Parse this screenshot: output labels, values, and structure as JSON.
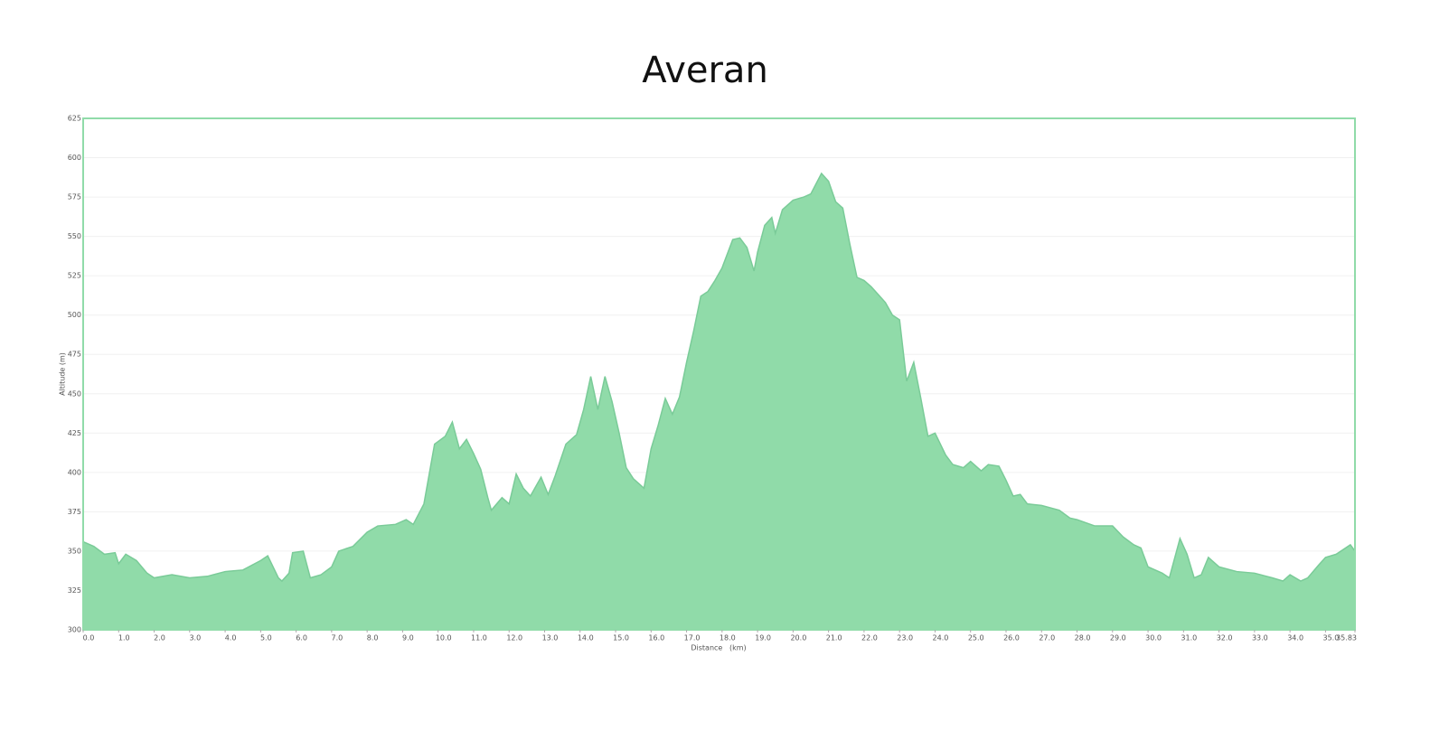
{
  "chart_data": {
    "type": "area",
    "title": "Averan",
    "x_label": "Distance   (km)",
    "y_label": "Altitude (m)",
    "color": "#90dba9",
    "line_color": "#7acb98",
    "grid": true,
    "xlim": [
      0,
      35.83
    ],
    "ylim": [
      300,
      625
    ],
    "yticks": [
      300,
      325,
      350,
      375,
      400,
      425,
      450,
      475,
      500,
      525,
      550,
      575,
      600,
      625
    ],
    "xticks": [
      {
        "value": 0,
        "label": "0.0"
      },
      {
        "value": 1,
        "label": "1.0"
      },
      {
        "value": 2,
        "label": "2.0"
      },
      {
        "value": 3,
        "label": "3.0"
      },
      {
        "value": 4,
        "label": "4.0"
      },
      {
        "value": 5,
        "label": "5.0"
      },
      {
        "value": 6,
        "label": "6.0"
      },
      {
        "value": 7,
        "label": "7.0"
      },
      {
        "value": 8,
        "label": "8.0"
      },
      {
        "value": 9,
        "label": "9.0"
      },
      {
        "value": 10,
        "label": "10.0"
      },
      {
        "value": 11,
        "label": "11.0"
      },
      {
        "value": 12,
        "label": "12.0"
      },
      {
        "value": 13,
        "label": "13.0"
      },
      {
        "value": 14,
        "label": "14.0"
      },
      {
        "value": 15,
        "label": "15.0"
      },
      {
        "value": 16,
        "label": "16.0"
      },
      {
        "value": 17,
        "label": "17.0"
      },
      {
        "value": 18,
        "label": "18.0"
      },
      {
        "value": 19,
        "label": "19.0"
      },
      {
        "value": 20,
        "label": "20.0"
      },
      {
        "value": 21,
        "label": "21.0"
      },
      {
        "value": 22,
        "label": "22.0"
      },
      {
        "value": 23,
        "label": "23.0"
      },
      {
        "value": 24,
        "label": "24.0"
      },
      {
        "value": 25,
        "label": "25.0"
      },
      {
        "value": 26,
        "label": "26.0"
      },
      {
        "value": 27,
        "label": "27.0"
      },
      {
        "value": 28,
        "label": "28.0"
      },
      {
        "value": 29,
        "label": "29.0"
      },
      {
        "value": 30,
        "label": "30.0"
      },
      {
        "value": 31,
        "label": "31.0"
      },
      {
        "value": 32,
        "label": "32.0"
      },
      {
        "value": 33,
        "label": "33.0"
      },
      {
        "value": 34,
        "label": "34.0"
      },
      {
        "value": 35,
        "label": "35.0"
      },
      35.83
    ],
    "x": [
      0,
      0.3,
      0.6,
      0.9,
      1.0,
      1.2,
      1.5,
      1.8,
      2.0,
      2.5,
      3.0,
      3.5,
      4.0,
      4.5,
      5.0,
      5.2,
      5.5,
      5.6,
      5.8,
      5.9,
      6.2,
      6.4,
      6.7,
      7.0,
      7.2,
      7.6,
      8.0,
      8.3,
      8.8,
      9.1,
      9.3,
      9.6,
      9.9,
      10.2,
      10.4,
      10.6,
      10.8,
      11.0,
      11.2,
      11.4,
      11.5,
      11.8,
      12.0,
      12.2,
      12.4,
      12.6,
      12.9,
      13.1,
      13.3,
      13.6,
      13.9,
      14.1,
      14.3,
      14.5,
      14.7,
      14.9,
      15.1,
      15.3,
      15.5,
      15.8,
      16.0,
      16.2,
      16.4,
      16.6,
      16.8,
      17.0,
      17.2,
      17.4,
      17.6,
      17.8,
      18.0,
      18.3,
      18.5,
      18.7,
      18.9,
      19.0,
      19.2,
      19.4,
      19.5,
      19.7,
      20.0,
      20.3,
      20.5,
      20.8,
      21.0,
      21.2,
      21.4,
      21.6,
      21.8,
      22.0,
      22.2,
      22.4,
      22.6,
      22.8,
      23.0,
      23.2,
      23.4,
      23.6,
      23.8,
      24.0,
      24.3,
      24.5,
      24.8,
      25.0,
      25.3,
      25.5,
      25.8,
      26.0,
      26.2,
      26.4,
      26.6,
      27.0,
      27.5,
      27.8,
      28.0,
      28.5,
      29.0,
      29.3,
      29.6,
      29.8,
      30.0,
      30.4,
      30.6,
      30.9,
      31.1,
      31.3,
      31.5,
      31.7,
      32.0,
      32.5,
      33.0,
      33.5,
      33.8,
      34.0,
      34.3,
      34.5,
      34.8,
      35.0,
      35.3,
      35.7,
      35.83
    ],
    "values": [
      356,
      353,
      348,
      349,
      342,
      348,
      344,
      336,
      333,
      335,
      333,
      334,
      337,
      338,
      344,
      347,
      333,
      331,
      336,
      349,
      350,
      333,
      335,
      340,
      350,
      353,
      362,
      366,
      367,
      370,
      367,
      380,
      418,
      423,
      432,
      415,
      421,
      412,
      402,
      384,
      376,
      384,
      380,
      399,
      390,
      385,
      397,
      386,
      398,
      418,
      424,
      440,
      461,
      440,
      461,
      445,
      425,
      403,
      396,
      390,
      415,
      430,
      447,
      437,
      448,
      470,
      490,
      512,
      515,
      522,
      530,
      548,
      549,
      543,
      528,
      540,
      557,
      562,
      552,
      567,
      573,
      575,
      577,
      590,
      585,
      572,
      568,
      545,
      524,
      522,
      518,
      513,
      508,
      500,
      497,
      458,
      470,
      447,
      423,
      425,
      411,
      405,
      403,
      407,
      401,
      405,
      404,
      395,
      385,
      386,
      380,
      379,
      376,
      371,
      370,
      366,
      366,
      359,
      354,
      352,
      340,
      336,
      333,
      358,
      348,
      333,
      335,
      346,
      340,
      337,
      336,
      333,
      331,
      335,
      331,
      333,
      341,
      346,
      348,
      354,
      350
    ]
  }
}
